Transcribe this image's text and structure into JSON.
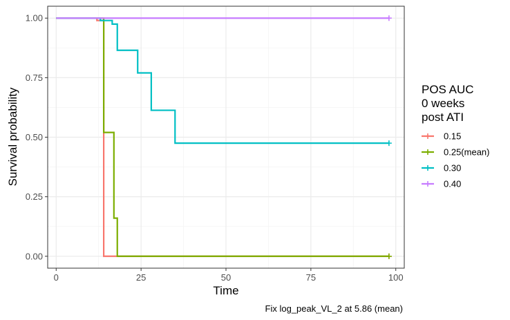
{
  "chart_data": {
    "type": "line",
    "step": true,
    "xlabel": "Time",
    "ylabel": "Survival probability",
    "xlim": [
      -2.5,
      102.5
    ],
    "ylim": [
      -0.05,
      1.05
    ],
    "x_ticks": [
      0,
      25,
      50,
      75,
      100
    ],
    "x_tick_labels": [
      "0",
      "25",
      "50",
      "75",
      "100"
    ],
    "y_ticks": [
      0,
      0.25,
      0.5,
      0.75,
      1
    ],
    "y_tick_labels": [
      "0.00",
      "0.25",
      "0.50",
      "0.75",
      "1.00"
    ],
    "grid": true,
    "legend": {
      "title_lines": [
        "POS AUC",
        "0 weeks",
        "post ATI"
      ],
      "placement": "right"
    },
    "caption": "Fix log_peak_VL_2 at 5.86 (mean)",
    "series": [
      {
        "name": "0.15",
        "color": "#F8766D",
        "points": [
          [
            0,
            1.0
          ],
          [
            12,
            1.0
          ],
          [
            12,
            0.99
          ],
          [
            14,
            0.99
          ],
          [
            14,
            0.0
          ],
          [
            98,
            0.0
          ]
        ],
        "censor": [
          [
            98,
            0.0
          ]
        ]
      },
      {
        "name": "0.25(mean)",
        "color": "#7CAE00",
        "points": [
          [
            0,
            1.0
          ],
          [
            14,
            1.0
          ],
          [
            14,
            0.52
          ],
          [
            17,
            0.52
          ],
          [
            17,
            0.16
          ],
          [
            18,
            0.16
          ],
          [
            18,
            0.0
          ],
          [
            98,
            0.0
          ]
        ],
        "censor": [
          [
            98,
            0.0
          ]
        ]
      },
      {
        "name": "0.30",
        "color": "#00BFC4",
        "points": [
          [
            0,
            1.0
          ],
          [
            13,
            1.0
          ],
          [
            13,
            0.99
          ],
          [
            16.5,
            0.99
          ],
          [
            16.5,
            0.975
          ],
          [
            18,
            0.975
          ],
          [
            18,
            0.865
          ],
          [
            24,
            0.865
          ],
          [
            24,
            0.77
          ],
          [
            28,
            0.77
          ],
          [
            28,
            0.613
          ],
          [
            35,
            0.613
          ],
          [
            35,
            0.475
          ],
          [
            98,
            0.475
          ]
        ],
        "censor": [
          [
            98,
            0.475
          ]
        ]
      },
      {
        "name": "0.40",
        "color": "#C77CFF",
        "points": [
          [
            0,
            1.0
          ],
          [
            98,
            1.0
          ]
        ],
        "censor": [
          [
            98,
            1.0
          ]
        ]
      }
    ]
  }
}
